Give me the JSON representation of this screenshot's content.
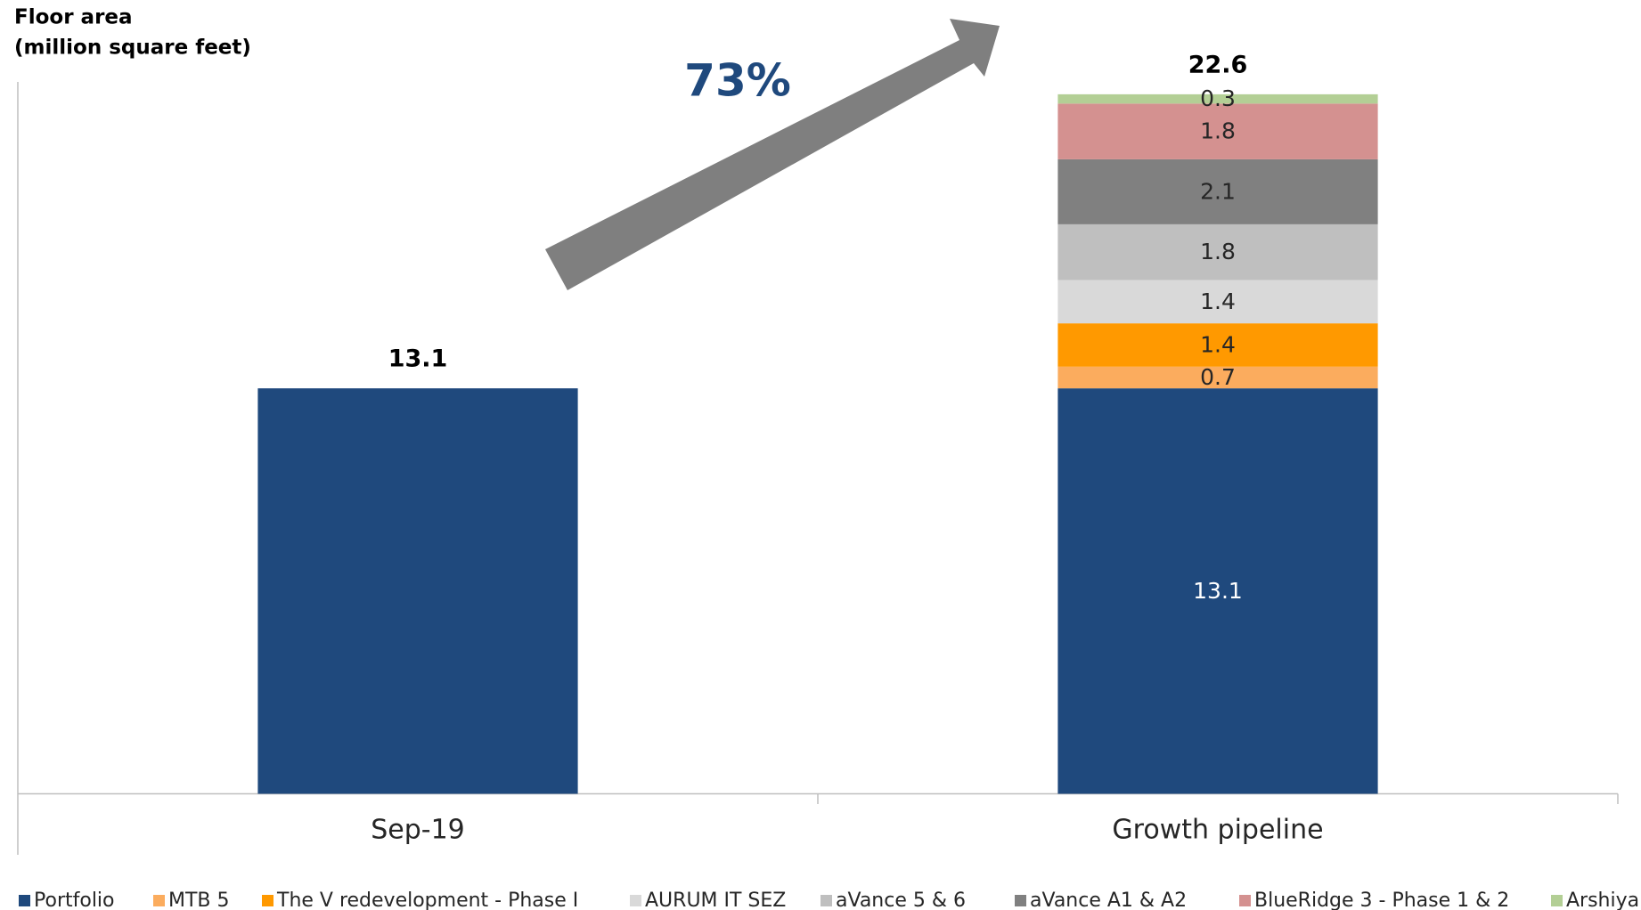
{
  "chart_data": {
    "type": "stacked_bar",
    "ylabel": [
      "Floor area",
      "(million square feet)"
    ],
    "annotation": "73%",
    "categories": [
      "Sep-19",
      "Growth pipeline"
    ],
    "totals": [
      13.1,
      22.6
    ],
    "ylim": [
      0,
      23
    ],
    "series": [
      {
        "name": "Portfolio",
        "color": "#1f497d",
        "values": [
          13.1,
          13.1
        ]
      },
      {
        "name": "MTB 5",
        "color": "#fbac5e",
        "values": [
          null,
          0.7
        ]
      },
      {
        "name": "The V redevelopment - Phase I",
        "color": "#ff9900",
        "values": [
          null,
          1.4
        ]
      },
      {
        "name": "AURUM IT SEZ",
        "color": "#d9d9d9",
        "values": [
          null,
          1.4
        ]
      },
      {
        "name": "aVance 5 & 6",
        "color": "#bfbfbf",
        "values": [
          null,
          1.8
        ]
      },
      {
        "name": "aVance A1 & A2",
        "color": "#808080",
        "values": [
          null,
          2.1
        ]
      },
      {
        "name": "BlueRidge 3 - Phase 1 & 2",
        "color": "#d49190",
        "values": [
          null,
          1.8
        ]
      },
      {
        "name": "Arshiya",
        "color": "#b3cf95",
        "values": [
          null,
          0.3
        ]
      }
    ]
  }
}
